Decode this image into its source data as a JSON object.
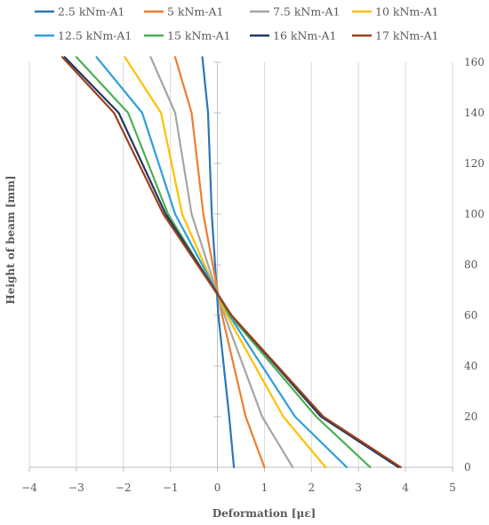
{
  "chart_data": {
    "type": "line",
    "title": "",
    "xlabel": "Deformation [με]",
    "ylabel": "Height of beam [mm]",
    "xlim": [
      -4,
      5
    ],
    "ylim": [
      0,
      160
    ],
    "x_ticks": [
      -4,
      -3,
      -2,
      -1,
      0,
      1,
      2,
      3,
      4,
      5
    ],
    "y_ticks": [
      0,
      20,
      40,
      60,
      80,
      100,
      120,
      140,
      160
    ],
    "x_tick_labels": [
      "−4",
      "−3",
      "−2",
      "−1",
      "0",
      "1",
      "2",
      "3",
      "4",
      "5"
    ],
    "y_tick_labels": [
      "0",
      "20",
      "40",
      "60",
      "80",
      "100",
      "120",
      "140",
      "160"
    ],
    "grid": "vertical",
    "y_axis_position": "right",
    "legend_position": "top",
    "heights": [
      0,
      20,
      60,
      100,
      140,
      162
    ],
    "series": [
      {
        "name": "2.5 kNm-A1",
        "color": "#2E75B6",
        "values": [
          0.35,
          0.25,
          0.02,
          -0.12,
          -0.2,
          -0.32
        ]
      },
      {
        "name": "5 kNm-A1",
        "color": "#ED7D31",
        "values": [
          1.0,
          0.6,
          0.1,
          -0.3,
          -0.55,
          -0.9
        ]
      },
      {
        "name": "7.5 kNm-A1",
        "color": "#A5A5A5",
        "values": [
          1.6,
          0.95,
          0.15,
          -0.55,
          -0.9,
          -1.42
        ]
      },
      {
        "name": "10 kNm-A1",
        "color": "#FFC000",
        "values": [
          2.3,
          1.4,
          0.2,
          -0.75,
          -1.2,
          -1.97
        ]
      },
      {
        "name": "12.5 kNm-A1",
        "color": "#2F9FD8",
        "values": [
          2.75,
          1.65,
          0.25,
          -0.9,
          -1.6,
          -2.57
        ]
      },
      {
        "name": "15 kNm-A1",
        "color": "#4CAF50",
        "values": [
          3.25,
          2.1,
          0.27,
          -1.05,
          -1.9,
          -3.0
        ]
      },
      {
        "name": "16 kNm-A1",
        "color": "#1F3864",
        "values": [
          3.85,
          2.2,
          0.3,
          -1.1,
          -2.1,
          -3.25
        ]
      },
      {
        "name": "17 kNm-A1",
        "color": "#9E3F1B",
        "values": [
          3.9,
          2.25,
          0.3,
          -1.15,
          -2.2,
          -3.3
        ]
      }
    ]
  }
}
